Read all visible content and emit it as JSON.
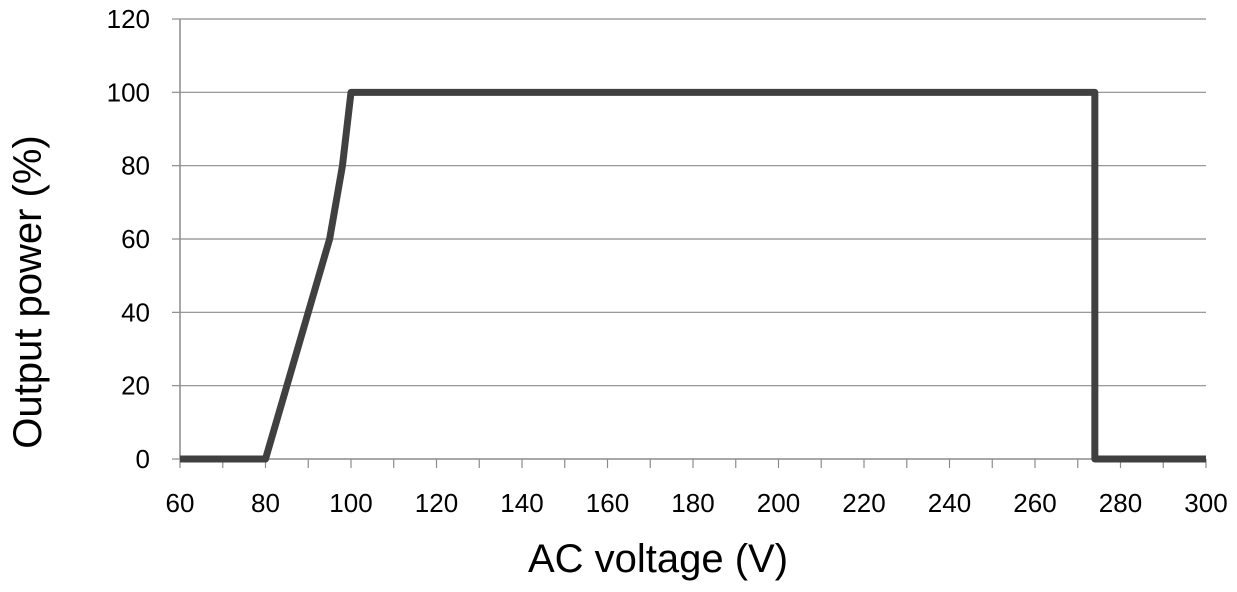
{
  "chart_data": {
    "type": "line",
    "xlabel": "AC voltage (V)",
    "ylabel": "Output power (%)",
    "xlim": [
      60,
      300
    ],
    "ylim": [
      0,
      120
    ],
    "xticks": [
      "60",
      "80",
      "100",
      "120",
      "140",
      "160",
      "180",
      "200",
      "220",
      "240",
      "260",
      "280",
      "300"
    ],
    "yticks": [
      "0",
      "20",
      "40",
      "60",
      "80",
      "100",
      "120"
    ],
    "grid": "horizontal",
    "series": [
      {
        "color": "#404040",
        "x": [
          60,
          80,
          85,
          90,
          95,
          98,
          100,
          274,
          274,
          300
        ],
        "y": [
          0,
          0,
          20,
          40,
          60,
          80,
          100,
          100,
          0,
          0
        ]
      }
    ]
  }
}
